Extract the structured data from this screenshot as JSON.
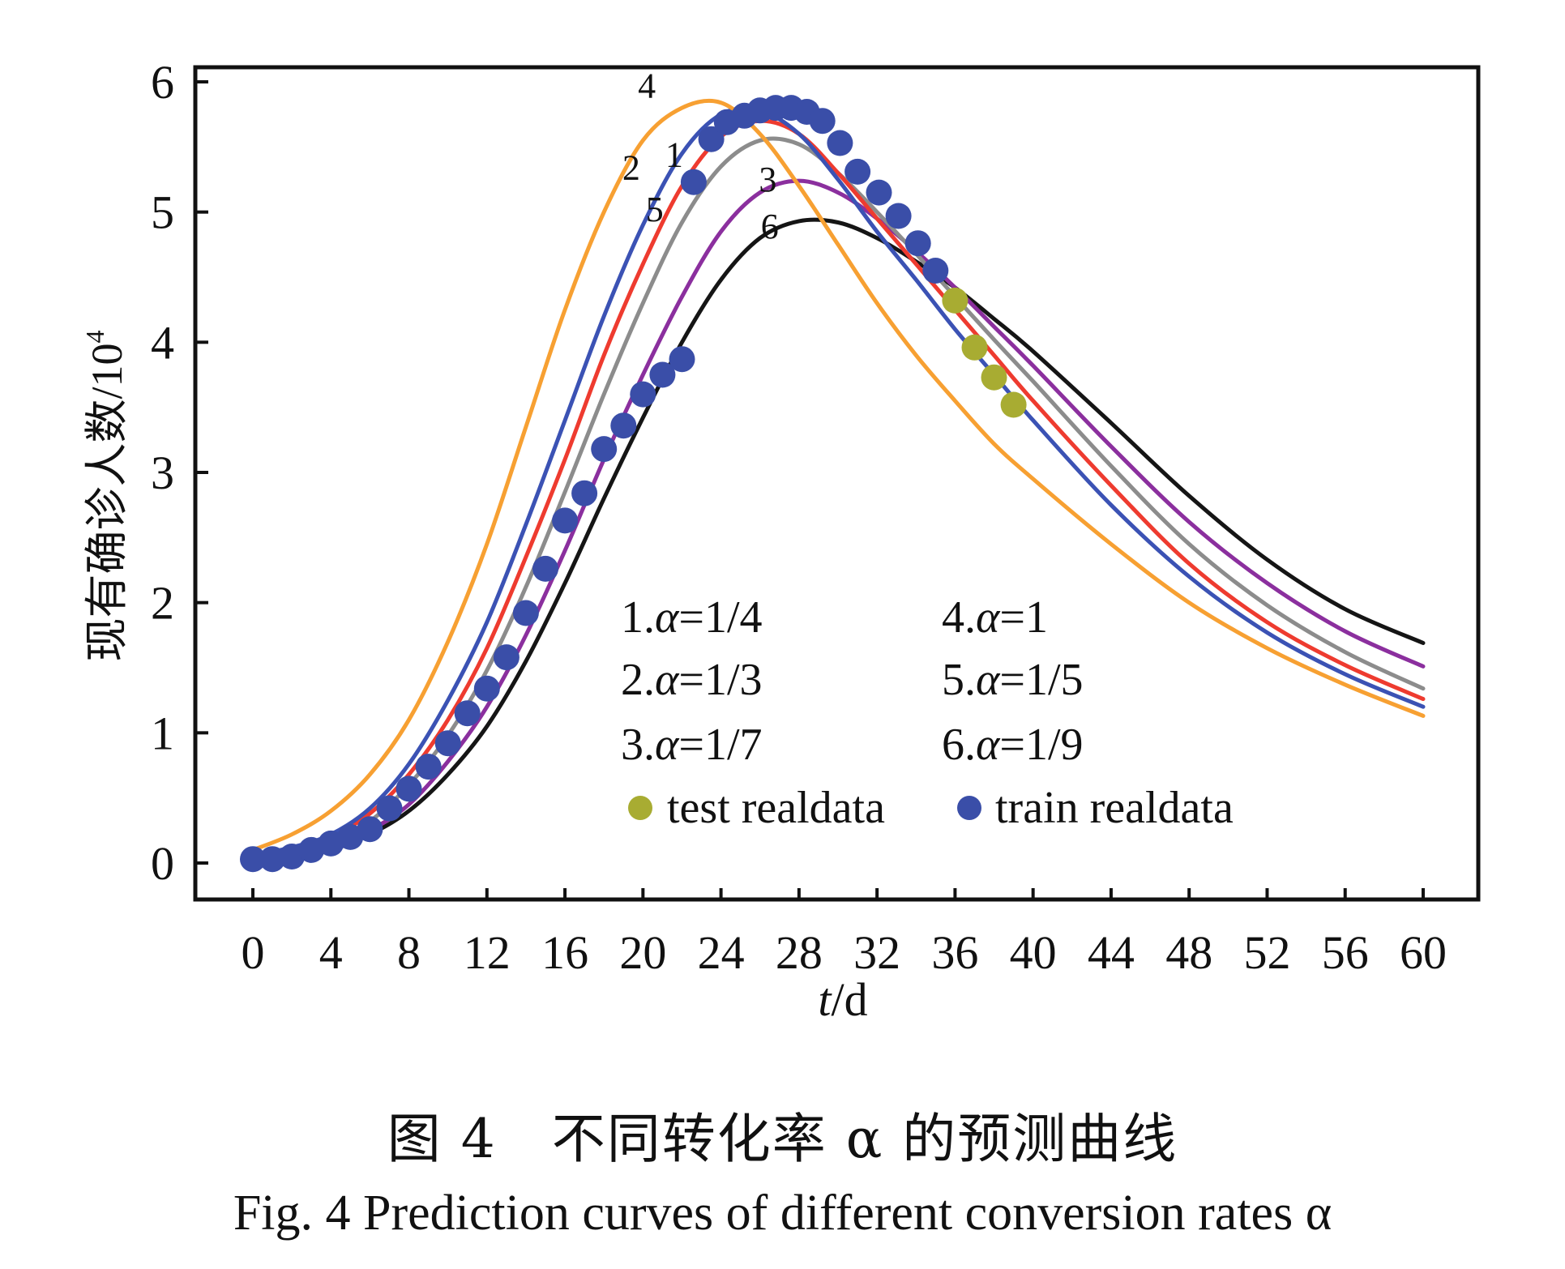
{
  "chart_data": {
    "type": "line",
    "title": "",
    "xlabel": "t/d",
    "xlabel_italic_part": "t",
    "xlabel_rest": "/d",
    "ylabel": "现有确诊人数/10",
    "ylabel_superscript": "4",
    "xlim": [
      0,
      60
    ],
    "ylim": [
      0,
      6
    ],
    "xticks": [
      0,
      4,
      8,
      12,
      16,
      20,
      24,
      28,
      32,
      36,
      40,
      44,
      48,
      52,
      56,
      60
    ],
    "yticks": [
      0,
      1,
      2,
      3,
      4,
      5,
      6
    ],
    "grid": false,
    "legend_position": "center-bottom-inside",
    "series": [
      {
        "id": 1,
        "name": "1.α=1/4",
        "alpha": "1/4",
        "color": "#ee3b2f",
        "label_at": [
          21.6,
          5.35
        ],
        "points": [
          [
            0,
            0.05
          ],
          [
            2,
            0.1
          ],
          [
            4,
            0.2
          ],
          [
            6,
            0.38
          ],
          [
            8,
            0.68
          ],
          [
            10,
            1.1
          ],
          [
            12,
            1.65
          ],
          [
            14,
            2.35
          ],
          [
            16,
            3.1
          ],
          [
            18,
            3.9
          ],
          [
            20,
            4.6
          ],
          [
            22,
            5.2
          ],
          [
            24,
            5.58
          ],
          [
            26,
            5.7
          ],
          [
            28,
            5.6
          ],
          [
            30,
            5.3
          ],
          [
            32,
            4.95
          ],
          [
            34,
            4.6
          ],
          [
            36,
            4.25
          ],
          [
            38,
            3.9
          ],
          [
            40,
            3.55
          ],
          [
            44,
            2.9
          ],
          [
            48,
            2.3
          ],
          [
            52,
            1.85
          ],
          [
            56,
            1.52
          ],
          [
            60,
            1.26
          ]
        ]
      },
      {
        "id": 2,
        "name": "2.α=1/3",
        "alpha": "1/3",
        "color": "#3b52b4",
        "label_at": [
          19.4,
          5.25
        ],
        "points": [
          [
            0,
            0.06
          ],
          [
            2,
            0.12
          ],
          [
            4,
            0.22
          ],
          [
            6,
            0.42
          ],
          [
            8,
            0.76
          ],
          [
            10,
            1.25
          ],
          [
            12,
            1.85
          ],
          [
            14,
            2.6
          ],
          [
            16,
            3.4
          ],
          [
            18,
            4.2
          ],
          [
            20,
            4.9
          ],
          [
            22,
            5.45
          ],
          [
            24,
            5.75
          ],
          [
            26,
            5.78
          ],
          [
            28,
            5.6
          ],
          [
            30,
            5.25
          ],
          [
            32,
            4.85
          ],
          [
            34,
            4.48
          ],
          [
            36,
            4.1
          ],
          [
            38,
            3.75
          ],
          [
            40,
            3.4
          ],
          [
            44,
            2.75
          ],
          [
            48,
            2.2
          ],
          [
            52,
            1.77
          ],
          [
            56,
            1.45
          ],
          [
            60,
            1.2
          ]
        ]
      },
      {
        "id": 3,
        "name": "3.α=1/7",
        "alpha": "1/7",
        "color": "#8b2f9e",
        "label_at": [
          26.4,
          5.16
        ],
        "points": [
          [
            0,
            0.03
          ],
          [
            2,
            0.06
          ],
          [
            4,
            0.12
          ],
          [
            6,
            0.25
          ],
          [
            8,
            0.45
          ],
          [
            10,
            0.78
          ],
          [
            12,
            1.2
          ],
          [
            14,
            1.75
          ],
          [
            16,
            2.4
          ],
          [
            18,
            3.1
          ],
          [
            20,
            3.75
          ],
          [
            22,
            4.35
          ],
          [
            24,
            4.85
          ],
          [
            26,
            5.15
          ],
          [
            28,
            5.24
          ],
          [
            30,
            5.15
          ],
          [
            32,
            4.95
          ],
          [
            34,
            4.7
          ],
          [
            36,
            4.42
          ],
          [
            38,
            4.12
          ],
          [
            40,
            3.82
          ],
          [
            44,
            3.2
          ],
          [
            48,
            2.62
          ],
          [
            52,
            2.15
          ],
          [
            56,
            1.78
          ],
          [
            60,
            1.51
          ]
        ]
      },
      {
        "id": 4,
        "name": "4.α=1",
        "alpha": "1",
        "color": "#f7a032",
        "label_at": [
          20.2,
          5.88
        ],
        "points": [
          [
            0,
            0.1
          ],
          [
            2,
            0.22
          ],
          [
            4,
            0.4
          ],
          [
            6,
            0.68
          ],
          [
            8,
            1.1
          ],
          [
            10,
            1.7
          ],
          [
            12,
            2.45
          ],
          [
            14,
            3.35
          ],
          [
            16,
            4.25
          ],
          [
            18,
            5.0
          ],
          [
            20,
            5.55
          ],
          [
            22,
            5.8
          ],
          [
            24,
            5.84
          ],
          [
            26,
            5.6
          ],
          [
            28,
            5.2
          ],
          [
            30,
            4.75
          ],
          [
            32,
            4.3
          ],
          [
            34,
            3.9
          ],
          [
            36,
            3.55
          ],
          [
            38,
            3.22
          ],
          [
            40,
            2.95
          ],
          [
            44,
            2.45
          ],
          [
            48,
            2.0
          ],
          [
            52,
            1.65
          ],
          [
            56,
            1.37
          ],
          [
            60,
            1.13
          ]
        ]
      },
      {
        "id": 5,
        "name": "5.α=1/5",
        "alpha": "1/5",
        "color": "#8c8c8c",
        "label_at": [
          20.6,
          4.93
        ],
        "points": [
          [
            0,
            0.04
          ],
          [
            2,
            0.08
          ],
          [
            4,
            0.16
          ],
          [
            6,
            0.32
          ],
          [
            8,
            0.6
          ],
          [
            10,
            0.98
          ],
          [
            12,
            1.48
          ],
          [
            14,
            2.12
          ],
          [
            16,
            2.85
          ],
          [
            18,
            3.6
          ],
          [
            20,
            4.3
          ],
          [
            22,
            4.92
          ],
          [
            24,
            5.35
          ],
          [
            26,
            5.55
          ],
          [
            28,
            5.52
          ],
          [
            30,
            5.3
          ],
          [
            32,
            5.0
          ],
          [
            34,
            4.68
          ],
          [
            36,
            4.35
          ],
          [
            38,
            4.02
          ],
          [
            40,
            3.7
          ],
          [
            44,
            3.05
          ],
          [
            48,
            2.45
          ],
          [
            52,
            1.98
          ],
          [
            56,
            1.62
          ],
          [
            60,
            1.34
          ]
        ]
      },
      {
        "id": 6,
        "name": "6.α=1/9",
        "alpha": "1/9",
        "color": "#151515",
        "label_at": [
          26.5,
          4.8
        ],
        "points": [
          [
            0,
            0.02
          ],
          [
            2,
            0.05
          ],
          [
            4,
            0.1
          ],
          [
            6,
            0.22
          ],
          [
            8,
            0.4
          ],
          [
            10,
            0.68
          ],
          [
            12,
            1.05
          ],
          [
            14,
            1.55
          ],
          [
            16,
            2.15
          ],
          [
            18,
            2.8
          ],
          [
            20,
            3.42
          ],
          [
            22,
            4.0
          ],
          [
            24,
            4.48
          ],
          [
            26,
            4.8
          ],
          [
            28,
            4.93
          ],
          [
            30,
            4.92
          ],
          [
            32,
            4.8
          ],
          [
            34,
            4.62
          ],
          [
            36,
            4.42
          ],
          [
            38,
            4.18
          ],
          [
            40,
            3.93
          ],
          [
            44,
            3.38
          ],
          [
            48,
            2.82
          ],
          [
            52,
            2.33
          ],
          [
            56,
            1.95
          ],
          [
            60,
            1.69
          ]
        ]
      }
    ],
    "scatter": [
      {
        "name": "test realdata",
        "color": "#a8ac32",
        "points": [
          [
            36,
            4.32
          ],
          [
            37,
            3.96
          ],
          [
            38,
            3.73
          ],
          [
            39,
            3.52
          ]
        ]
      },
      {
        "name": "train realdata",
        "color": "#3a4ea8",
        "points": [
          [
            0,
            0.03
          ],
          [
            1,
            0.03
          ],
          [
            2,
            0.05
          ],
          [
            3,
            0.1
          ],
          [
            4,
            0.15
          ],
          [
            5,
            0.2
          ],
          [
            6,
            0.26
          ],
          [
            7,
            0.42
          ],
          [
            8,
            0.57
          ],
          [
            9,
            0.74
          ],
          [
            10,
            0.92
          ],
          [
            11,
            1.15
          ],
          [
            12,
            1.34
          ],
          [
            13,
            1.58
          ],
          [
            14,
            1.92
          ],
          [
            15,
            2.26
          ],
          [
            16,
            2.63
          ],
          [
            17,
            2.84
          ],
          [
            18,
            3.18
          ],
          [
            19,
            3.36
          ],
          [
            20,
            3.6
          ],
          [
            21,
            3.75
          ],
          [
            22,
            3.87
          ],
          [
            22.6,
            5.23
          ],
          [
            23.5,
            5.56
          ],
          [
            24.3,
            5.69
          ],
          [
            25.2,
            5.74
          ],
          [
            26,
            5.78
          ],
          [
            26.8,
            5.8
          ],
          [
            27.6,
            5.8
          ],
          [
            28.4,
            5.77
          ],
          [
            29.2,
            5.7
          ],
          [
            30.1,
            5.53
          ],
          [
            31,
            5.31
          ],
          [
            32.1,
            5.15
          ],
          [
            33.1,
            4.97
          ],
          [
            34.1,
            4.76
          ],
          [
            35,
            4.55
          ]
        ]
      }
    ],
    "legend": {
      "col1": [
        "1.",
        "2.",
        "3."
      ],
      "col1_values": [
        "=1/4",
        "=1/3",
        "=1/7"
      ],
      "col2": [
        "4.",
        "5.",
        "6."
      ],
      "col2_values": [
        "=1",
        "=1/5",
        "=1/9"
      ],
      "symbol": "α",
      "test_label": "test realdata",
      "train_label": "train realdata"
    }
  },
  "caption": {
    "cn": "图 4　不同转化率 α 的预测曲线",
    "en": "Fig. 4   Prediction curves of different conversion rates α"
  }
}
